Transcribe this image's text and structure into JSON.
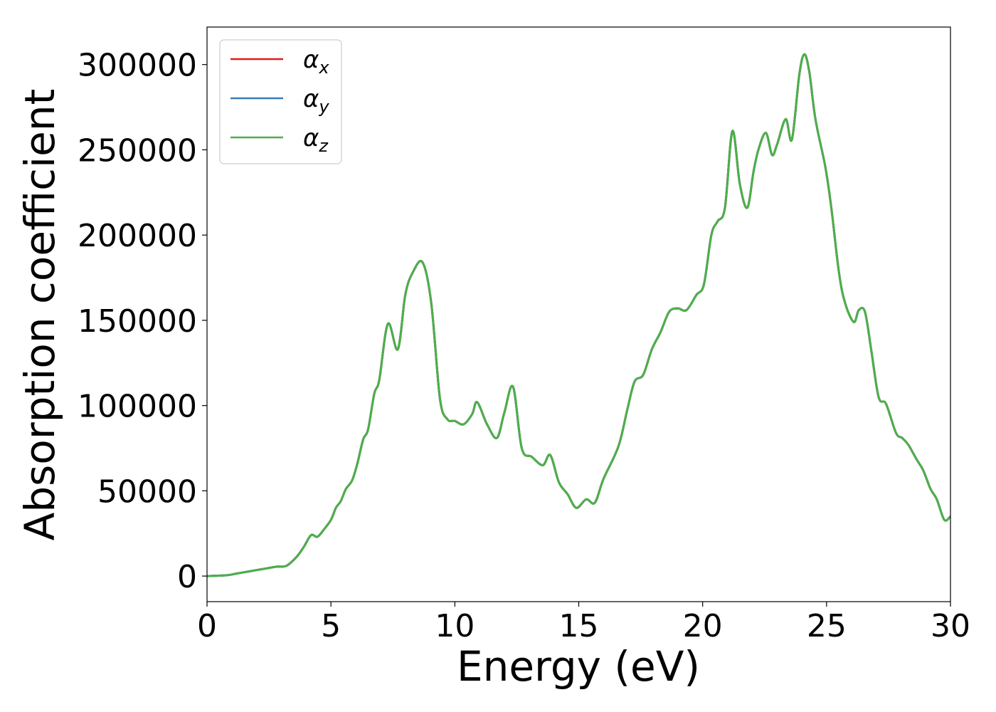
{
  "chart_data": {
    "type": "line",
    "xlabel": "Energy (eV)",
    "ylabel": "Absorption coefficient",
    "xlim": [
      0,
      30
    ],
    "ylim": [
      -15000,
      322000
    ],
    "xticks": [
      0,
      5,
      10,
      15,
      20,
      25,
      30
    ],
    "yticks": [
      0,
      50000,
      100000,
      150000,
      200000,
      250000,
      300000
    ],
    "grid": false,
    "legend_position": "top-left",
    "series": [
      {
        "name": "α",
        "subscript": "x",
        "color": "#e41a1c"
      },
      {
        "name": "α",
        "subscript": "y",
        "color": "#377eb8"
      },
      {
        "name": "α",
        "subscript": "z",
        "color": "#4daf4a"
      }
    ],
    "x": [
      0,
      0.8,
      1.2,
      1.6,
      2.0,
      2.4,
      2.8,
      3.2,
      3.6,
      3.9,
      4.2,
      4.45,
      4.7,
      5.0,
      5.2,
      5.4,
      5.6,
      5.85,
      6.05,
      6.3,
      6.5,
      6.75,
      6.95,
      7.3,
      7.7,
      8.0,
      8.3,
      8.7,
      9.05,
      9.4,
      9.7,
      10.0,
      10.35,
      10.7,
      10.9,
      11.3,
      11.7,
      12.0,
      12.35,
      12.7,
      13.1,
      13.55,
      13.85,
      14.2,
      14.55,
      14.9,
      15.3,
      15.65,
      16.0,
      16.6,
      16.95,
      17.25,
      17.6,
      17.95,
      18.3,
      18.65,
      19.0,
      19.35,
      19.75,
      20.05,
      20.35,
      20.6,
      20.9,
      21.2,
      21.5,
      21.8,
      22.05,
      22.25,
      22.55,
      22.8,
      23.0,
      23.35,
      23.6,
      23.9,
      24.1,
      24.3,
      24.55,
      24.95,
      25.2,
      25.5,
      25.75,
      26.1,
      26.3,
      26.55,
      26.8,
      27.1,
      27.4,
      27.8,
      28.05,
      28.3,
      28.65,
      28.9,
      29.2,
      29.45,
      29.75,
      30.0
    ],
    "values": [
      0,
      500,
      1500,
      2500,
      3500,
      4500,
      5500,
      6000,
      11000,
      17000,
      24000,
      23000,
      27000,
      33000,
      40000,
      44000,
      51000,
      56000,
      65000,
      80000,
      86000,
      107000,
      115000,
      148000,
      133000,
      165000,
      178000,
      184000,
      160000,
      104000,
      92000,
      91000,
      89000,
      95000,
      102000,
      89000,
      81000,
      96000,
      111000,
      75000,
      70000,
      65000,
      71000,
      55000,
      48000,
      40000,
      45000,
      43000,
      57000,
      76000,
      97000,
      114000,
      118000,
      133000,
      143000,
      155000,
      157000,
      156000,
      165000,
      171000,
      200000,
      208000,
      216000,
      261000,
      230000,
      216000,
      237000,
      250000,
      260000,
      247000,
      253000,
      268000,
      256000,
      294000,
      306000,
      296000,
      268000,
      240000,
      215000,
      178000,
      160000,
      149000,
      156000,
      155000,
      133000,
      105000,
      101000,
      84000,
      81000,
      77000,
      68000,
      62000,
      51000,
      45000,
      33000,
      35000
    ]
  }
}
